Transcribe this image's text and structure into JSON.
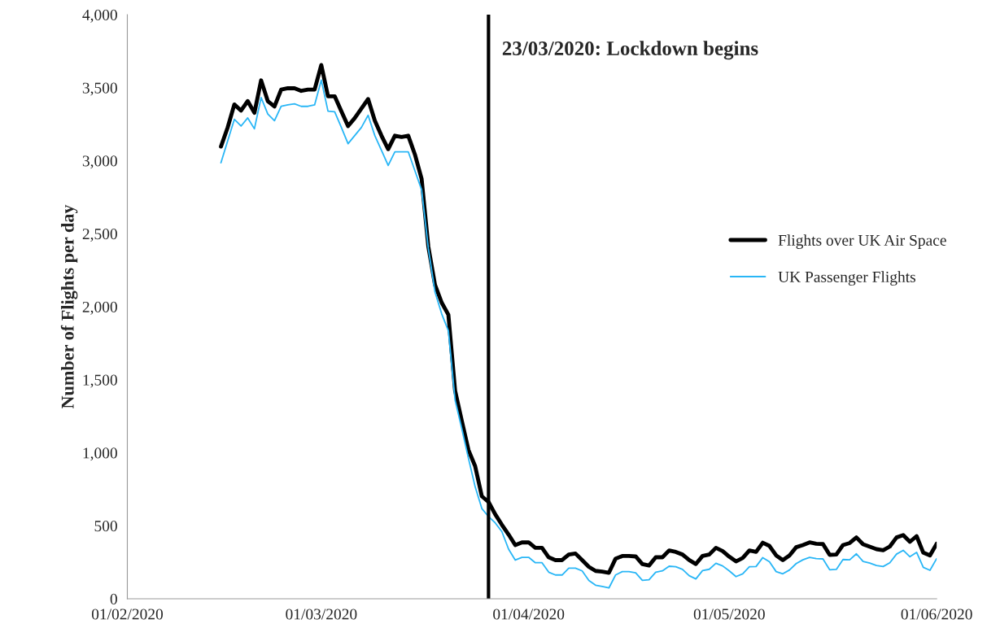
{
  "chart_data": {
    "type": "line",
    "ylabel": "Number of Flights per day",
    "x": [
      "2020-02-15",
      "2020-02-16",
      "2020-02-17",
      "2020-02-18",
      "2020-02-19",
      "2020-02-20",
      "2020-02-21",
      "2020-02-22",
      "2020-02-23",
      "2020-02-24",
      "2020-02-25",
      "2020-02-26",
      "2020-02-27",
      "2020-02-28",
      "2020-02-29",
      "2020-03-01",
      "2020-03-02",
      "2020-03-03",
      "2020-03-04",
      "2020-03-05",
      "2020-03-06",
      "2020-03-07",
      "2020-03-08",
      "2020-03-09",
      "2020-03-10",
      "2020-03-11",
      "2020-03-12",
      "2020-03-13",
      "2020-03-14",
      "2020-03-15",
      "2020-03-16",
      "2020-03-17",
      "2020-03-18",
      "2020-03-19",
      "2020-03-20",
      "2020-03-21",
      "2020-03-22",
      "2020-03-23",
      "2020-03-24",
      "2020-03-25",
      "2020-03-26",
      "2020-03-27",
      "2020-03-28",
      "2020-03-29",
      "2020-03-30",
      "2020-03-31",
      "2020-04-01",
      "2020-04-02",
      "2020-04-03",
      "2020-04-04",
      "2020-04-05",
      "2020-04-06",
      "2020-04-07",
      "2020-04-08",
      "2020-04-09",
      "2020-04-10",
      "2020-04-11",
      "2020-04-12",
      "2020-04-13",
      "2020-04-14",
      "2020-04-15",
      "2020-04-16",
      "2020-04-17",
      "2020-04-18",
      "2020-04-19",
      "2020-04-20",
      "2020-04-21",
      "2020-04-22",
      "2020-04-23",
      "2020-04-24",
      "2020-04-25",
      "2020-04-26",
      "2020-04-27",
      "2020-04-28",
      "2020-04-29",
      "2020-04-30",
      "2020-05-01",
      "2020-05-02",
      "2020-05-03",
      "2020-05-04",
      "2020-05-05",
      "2020-05-06",
      "2020-05-07",
      "2020-05-08",
      "2020-05-09",
      "2020-05-10",
      "2020-05-11",
      "2020-05-12",
      "2020-05-13",
      "2020-05-14",
      "2020-05-15",
      "2020-05-16",
      "2020-05-17",
      "2020-05-18",
      "2020-05-19",
      "2020-05-20",
      "2020-05-21",
      "2020-05-22",
      "2020-05-23",
      "2020-05-24",
      "2020-05-25",
      "2020-05-26",
      "2020-05-27",
      "2020-05-28",
      "2020-05-29",
      "2020-05-30",
      "2020-05-31",
      "2020-06-01"
    ],
    "series": [
      {
        "name": "Flights over UK Air Space",
        "color": "#000000",
        "values": [
          3097,
          3227,
          3385,
          3343,
          3408,
          3328,
          3550,
          3408,
          3371,
          3487,
          3496,
          3496,
          3478,
          3487,
          3487,
          3655,
          3441,
          3441,
          3339,
          3237,
          3292,
          3357,
          3422,
          3274,
          3171,
          3079,
          3171,
          3162,
          3171,
          3042,
          2875,
          2412,
          2150,
          2028,
          1945,
          1426,
          1220,
          1019,
          908,
          702,
          663,
          579,
          507,
          440,
          368,
          386,
          386,
          349,
          349,
          284,
          265,
          265,
          303,
          310,
          265,
          219,
          191,
          186,
          178,
          275,
          293,
          293,
          290,
          238,
          228,
          284,
          284,
          331,
          321,
          303,
          265,
          238,
          293,
          303,
          349,
          327,
          288,
          256,
          279,
          331,
          321,
          384,
          362,
          297,
          265,
          297,
          353,
          368,
          386,
          377,
          375,
          301,
          303,
          368,
          382,
          420,
          373,
          357,
          340,
          332,
          358,
          420,
          436,
          390,
          429,
          316,
          297,
          377
        ]
      },
      {
        "name": "UK Passenger Flights",
        "color": "#29b6f6",
        "values": [
          2986,
          3135,
          3283,
          3237,
          3293,
          3218,
          3432,
          3320,
          3274,
          3372,
          3382,
          3389,
          3372,
          3372,
          3382,
          3552,
          3339,
          3335,
          3228,
          3116,
          3172,
          3228,
          3311,
          3172,
          3070,
          2967,
          3061,
          3061,
          3061,
          2930,
          2800,
          2400,
          2100,
          1951,
          1835,
          1361,
          1166,
          962,
          767,
          618,
          563,
          520,
          460,
          340,
          265,
          284,
          284,
          247,
          247,
          182,
          163,
          163,
          210,
          210,
          191,
          126,
          93,
          84,
          74,
          163,
          186,
          186,
          178,
          126,
          130,
          182,
          191,
          223,
          219,
          201,
          158,
          136,
          193,
          202,
          243,
          225,
          191,
          152,
          171,
          219,
          221,
          282,
          253,
          186,
          171,
          197,
          241,
          267,
          284,
          275,
          273,
          199,
          201,
          269,
          267,
          308,
          256,
          245,
          228,
          221,
          247,
          306,
          332,
          288,
          318,
          215,
          195,
          275
        ]
      }
    ],
    "xlim": [
      "2020-02-01",
      "2020-06-01"
    ],
    "xticks": [
      {
        "value": "2020-02-01",
        "label": "01/02/2020"
      },
      {
        "value": "2020-03-01",
        "label": "01/03/2020"
      },
      {
        "value": "2020-04-01",
        "label": "01/04/2020"
      },
      {
        "value": "2020-05-01",
        "label": "01/05/2020"
      },
      {
        "value": "2020-06-01",
        "label": "01/06/2020"
      }
    ],
    "ylim": [
      0,
      4000
    ],
    "yticks": [
      0,
      500,
      {
        "value": 1000,
        "label": "1,000"
      },
      {
        "value": 1500,
        "label": "1,500"
      },
      {
        "value": 2000,
        "label": "2,000"
      },
      {
        "value": 2500,
        "label": "2,500"
      },
      {
        "value": 3000,
        "label": "3,000"
      },
      {
        "value": 3500,
        "label": "3,500"
      },
      {
        "value": 4000,
        "label": "4,000"
      }
    ],
    "ref_lines": [
      {
        "axis": "x",
        "value": "2020-03-26",
        "label": "23/03/2020: Lockdown begins",
        "color": "#000000"
      }
    ],
    "legend": "right",
    "grid": false,
    "marker": "none",
    "line_style": "solid"
  }
}
